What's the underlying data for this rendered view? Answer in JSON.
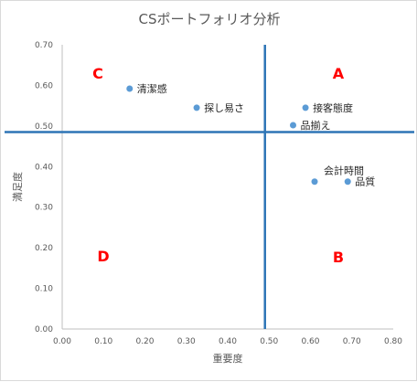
{
  "chart_data": {
    "type": "scatter",
    "title": "CSポートフォリオ分析",
    "xlabel": "重要度",
    "ylabel": "満足度",
    "xlim": [
      0.0,
      0.8
    ],
    "ylim": [
      0.0,
      0.7
    ],
    "x_ticks": [
      "0.00",
      "0.10",
      "0.20",
      "0.30",
      "0.40",
      "0.50",
      "0.60",
      "0.70",
      "0.80"
    ],
    "y_ticks": [
      "0.00",
      "0.10",
      "0.20",
      "0.30",
      "0.40",
      "0.50",
      "0.60",
      "0.70"
    ],
    "grid": false,
    "points": [
      {
        "label": "清潔感",
        "x": 0.163,
        "y": 0.592
      },
      {
        "label": "探し易さ",
        "x": 0.325,
        "y": 0.545
      },
      {
        "label": "接客態度",
        "x": 0.588,
        "y": 0.545
      },
      {
        "label": "品揃え",
        "x": 0.558,
        "y": 0.502
      },
      {
        "label": "会計時間",
        "x": 0.61,
        "y": 0.363
      },
      {
        "label": "品質",
        "x": 0.69,
        "y": 0.363
      }
    ],
    "reference_lines": {
      "x": 0.49,
      "y": 0.485
    },
    "quadrant_labels": [
      {
        "label": "A",
        "position": "top-right"
      },
      {
        "label": "B",
        "position": "bottom-right"
      },
      {
        "label": "C",
        "position": "top-left"
      },
      {
        "label": "D",
        "position": "bottom-left"
      }
    ],
    "colors": {
      "point": "#5b9bd5",
      "reference_line": "#2e75b6",
      "quadrant_text": "#ff0000",
      "axis": "#bfbfbf",
      "text": "#595959"
    }
  }
}
